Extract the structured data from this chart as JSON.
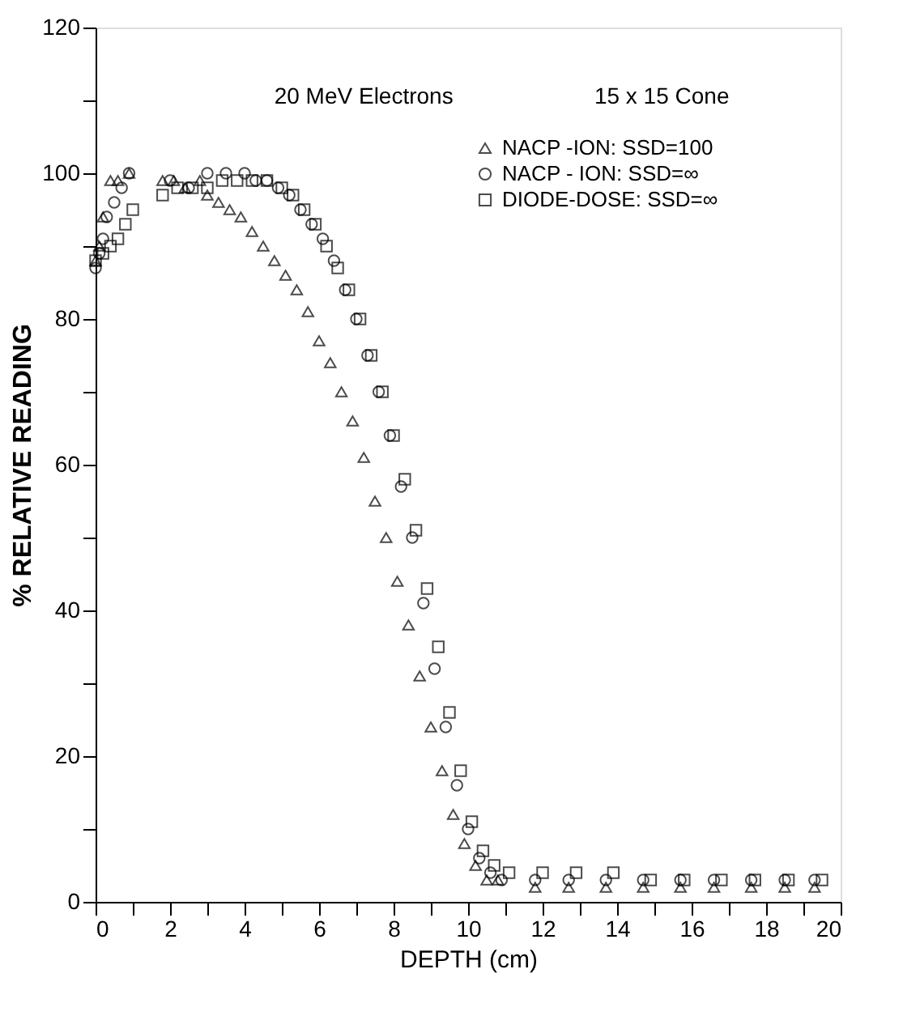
{
  "chart_data": {
    "type": "scatter",
    "xlabel": "DEPTH   (cm)",
    "ylabel": "%   RELATIVE   READING",
    "annotations": [
      "20 MeV  Electrons",
      "15 x 15  Cone"
    ],
    "xlim": [
      0,
      20
    ],
    "ylim": [
      0,
      120
    ],
    "xticks": [
      0,
      {
        "value": 1,
        "label": null
      },
      2,
      {
        "value": 3,
        "label": null
      },
      4,
      {
        "value": 5,
        "label": null
      },
      6,
      {
        "value": 7,
        "label": null
      },
      8,
      {
        "value": 9,
        "label": null
      },
      10,
      {
        "value": 11,
        "label": null
      },
      12,
      {
        "value": 13,
        "label": null
      },
      14,
      {
        "value": 15,
        "label": null
      },
      16,
      {
        "value": 17,
        "label": null
      },
      18,
      {
        "value": 19,
        "label": null
      },
      20
    ],
    "yticks": [
      0,
      {
        "value": 10,
        "label": null
      },
      20,
      {
        "value": 30,
        "label": null
      },
      40,
      {
        "value": 50,
        "label": null
      },
      60,
      {
        "value": 70,
        "label": null
      },
      80,
      {
        "value": 90,
        "label": null
      },
      100,
      {
        "value": 110,
        "label": null
      },
      120
    ],
    "grid": false,
    "legend": "top right",
    "series": [
      {
        "name": "NACP -ION:   SSD=100",
        "color": "#000000",
        "marker": "triangle",
        "x": [
          0,
          0.1,
          0.2,
          0.4,
          0.6,
          0.9,
          1.8,
          2.1,
          2.4,
          2.8,
          3.0,
          3.3,
          3.6,
          3.9,
          4.2,
          4.5,
          4.8,
          5.1,
          5.4,
          5.7,
          6.0,
          6.3,
          6.6,
          6.9,
          7.2,
          7.5,
          7.8,
          8.1,
          8.4,
          8.7,
          9.0,
          9.3,
          9.6,
          9.9,
          10.2,
          10.5,
          10.8,
          11.8,
          12.7,
          13.7,
          14.7,
          15.7,
          16.6,
          17.6,
          18.5,
          19.3
        ],
        "values": [
          88,
          90,
          94,
          99,
          99,
          100,
          99,
          99,
          98,
          99,
          97,
          96,
          95,
          94,
          92,
          90,
          88,
          86,
          84,
          81,
          77,
          74,
          70,
          66,
          61,
          55,
          50,
          44,
          38,
          31,
          24,
          18,
          12,
          8,
          5,
          3,
          3,
          2,
          2,
          2,
          2,
          2,
          2,
          2,
          2,
          2
        ]
      },
      {
        "name": "NACP - ION:   SSD=∞",
        "color": "#000000",
        "marker": "circle",
        "x": [
          0,
          0.1,
          0.2,
          0.3,
          0.5,
          0.7,
          0.9,
          2.0,
          2.5,
          3.0,
          3.5,
          4.0,
          4.3,
          4.6,
          4.9,
          5.2,
          5.5,
          5.8,
          6.1,
          6.4,
          6.7,
          7.0,
          7.3,
          7.6,
          7.9,
          8.2,
          8.5,
          8.8,
          9.1,
          9.4,
          9.7,
          10.0,
          10.3,
          10.6,
          10.9,
          11.8,
          12.7,
          13.7,
          14.7,
          15.7,
          16.6,
          17.6,
          18.5,
          19.3
        ],
        "values": [
          87,
          89,
          91,
          94,
          96,
          98,
          100,
          99,
          98,
          100,
          100,
          100,
          99,
          99,
          98,
          97,
          95,
          93,
          91,
          88,
          84,
          80,
          75,
          70,
          64,
          57,
          50,
          41,
          32,
          24,
          16,
          10,
          6,
          4,
          3,
          3,
          3,
          3,
          3,
          3,
          3,
          3,
          3,
          3
        ]
      },
      {
        "name": "DIODE-DOSE:   SSD=∞",
        "color": "#000000",
        "marker": "square",
        "x": [
          0,
          0.2,
          0.4,
          0.6,
          0.8,
          1.0,
          1.8,
          2.2,
          2.6,
          3.0,
          3.4,
          3.8,
          4.2,
          4.6,
          5.0,
          5.3,
          5.6,
          5.9,
          6.2,
          6.5,
          6.8,
          7.1,
          7.4,
          7.7,
          8.0,
          8.3,
          8.6,
          8.9,
          9.2,
          9.5,
          9.8,
          10.1,
          10.4,
          10.7,
          11.1,
          12.0,
          12.9,
          13.9,
          14.9,
          15.8,
          16.8,
          17.7,
          18.6,
          19.5
        ],
        "values": [
          88,
          89,
          90,
          91,
          93,
          95,
          97,
          98,
          98,
          98,
          99,
          99,
          99,
          99,
          98,
          97,
          95,
          93,
          90,
          87,
          84,
          80,
          75,
          70,
          64,
          58,
          51,
          43,
          35,
          26,
          18,
          11,
          7,
          5,
          4,
          4,
          4,
          4,
          3,
          3,
          3,
          3,
          3,
          3
        ]
      }
    ]
  }
}
